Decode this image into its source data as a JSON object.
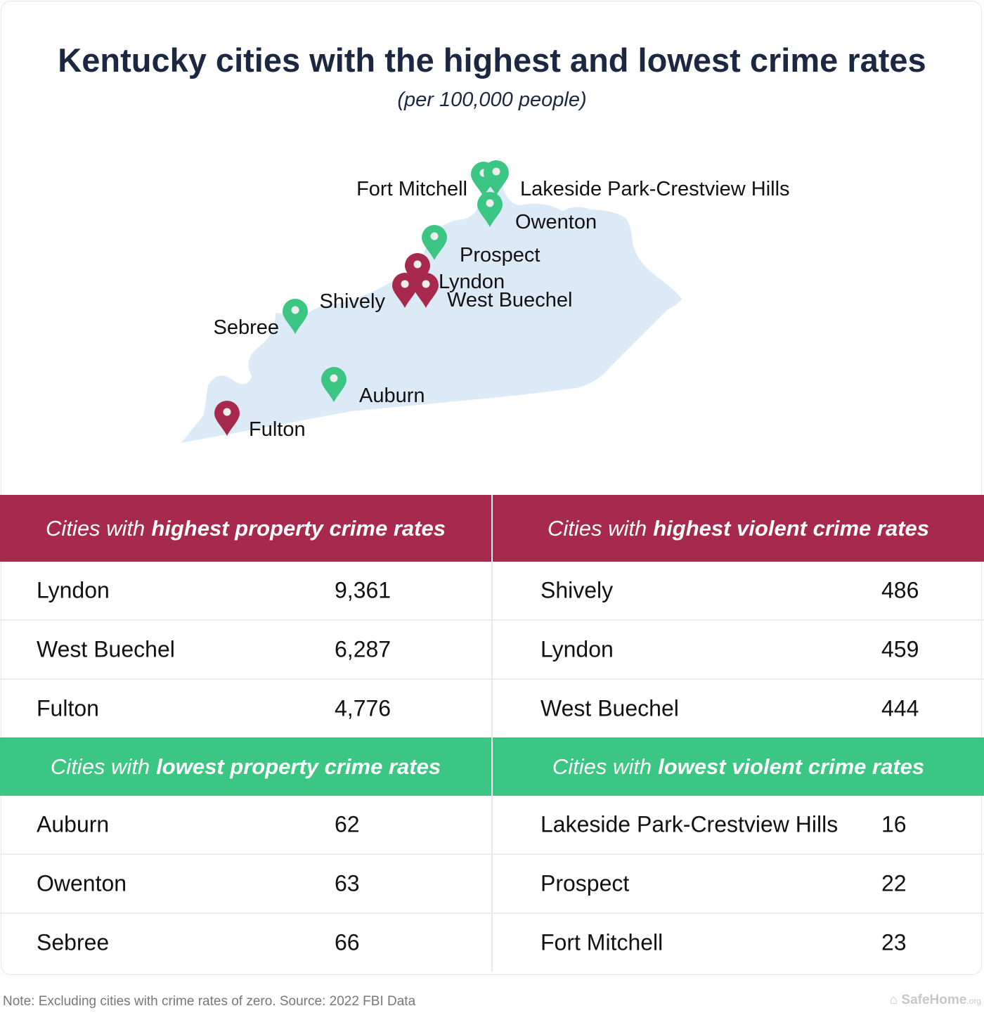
{
  "title": "Kentucky cities with the highest and lowest crime rates",
  "subtitle": "(per 100,000 people)",
  "colors": {
    "high": "#a7294e",
    "low": "#3cc683",
    "map_fill": "#dce9f7",
    "title": "#1c2841"
  },
  "map": {
    "pins": [
      {
        "label": "Fort Mitchell",
        "category": "low"
      },
      {
        "label": "Lakeside Park-Crestview Hills",
        "category": "low"
      },
      {
        "label": "Owenton",
        "category": "low"
      },
      {
        "label": "Prospect",
        "category": "low"
      },
      {
        "label": "Lyndon",
        "category": "high"
      },
      {
        "label": "Shively",
        "category": "high"
      },
      {
        "label": "West Buechel",
        "category": "high"
      },
      {
        "label": "Sebree",
        "category": "low"
      },
      {
        "label": "Auburn",
        "category": "low"
      },
      {
        "label": "Fulton",
        "category": "high"
      }
    ]
  },
  "tables": {
    "high": {
      "property": {
        "prefix": "Cities with",
        "emph": "highest property crime rates",
        "rows": [
          [
            "Lyndon",
            "9,361"
          ],
          [
            "West Buechel",
            "6,287"
          ],
          [
            "Fulton",
            "4,776"
          ]
        ]
      },
      "violent": {
        "prefix": "Cities with",
        "emph": "highest violent crime rates",
        "rows": [
          [
            "Shively",
            "486"
          ],
          [
            "Lyndon",
            "459"
          ],
          [
            "West Buechel",
            "444"
          ]
        ]
      }
    },
    "low": {
      "property": {
        "prefix": "Cities with",
        "emph": "lowest property crime rates",
        "rows": [
          [
            "Auburn",
            "62"
          ],
          [
            "Owenton",
            "63"
          ],
          [
            "Sebree",
            "66"
          ]
        ]
      },
      "violent": {
        "prefix": "Cities with",
        "emph": "lowest violent crime rates",
        "rows": [
          [
            "Lakeside Park-Crestview Hills",
            "16"
          ],
          [
            "Prospect",
            "22"
          ],
          [
            "Fort Mitchell",
            "23"
          ]
        ]
      }
    }
  },
  "footer": {
    "note": "Note: Excluding cities with crime rates of zero. Source: 2022 FBI Data",
    "logo": "SafeHome",
    "logo_suffix": ".org"
  }
}
